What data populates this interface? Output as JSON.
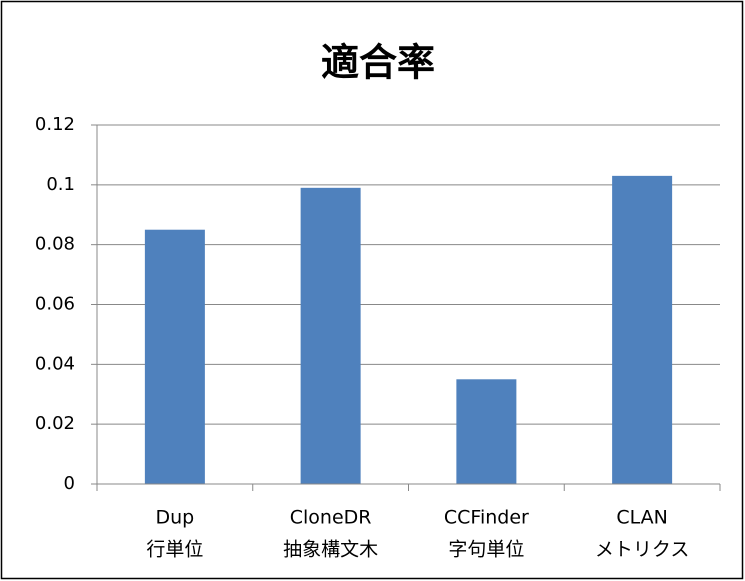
{
  "chart_data": {
    "type": "bar",
    "title": "適合率",
    "categories": [
      [
        "Dup",
        "行単位"
      ],
      [
        "CloneDR",
        "抽象構文木"
      ],
      [
        "CCFinder",
        "字句単位"
      ],
      [
        "CLAN",
        "メトリクス"
      ]
    ],
    "values": [
      0.085,
      0.099,
      0.035,
      0.103
    ],
    "color": "#4f81bd",
    "ylim": [
      0,
      0.12
    ],
    "yticks": [
      0,
      0.02,
      0.04,
      0.06,
      0.08,
      0.1,
      0.12
    ],
    "grid": true
  }
}
